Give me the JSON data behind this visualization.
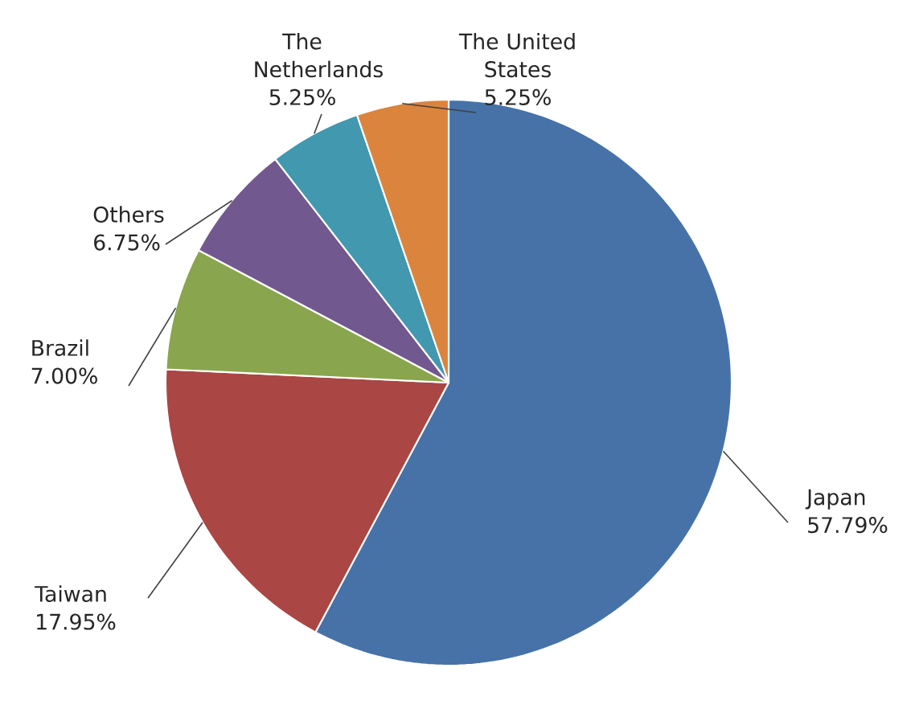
{
  "chart_data": {
    "type": "pie",
    "categories": [
      "Japan",
      "Taiwan",
      "Brazil",
      "Others",
      "The Netherlands",
      "The United States"
    ],
    "values": [
      57.79,
      17.95,
      7.0,
      6.75,
      5.25,
      5.25
    ],
    "value_labels": [
      "57.79%",
      "17.95%",
      "7.00%",
      "6.75%",
      "5.25%",
      "5.25%"
    ],
    "colors": [
      "#4672a8",
      "#aa4643",
      "#89a54e",
      "#71588f",
      "#4198af",
      "#db843d"
    ]
  }
}
